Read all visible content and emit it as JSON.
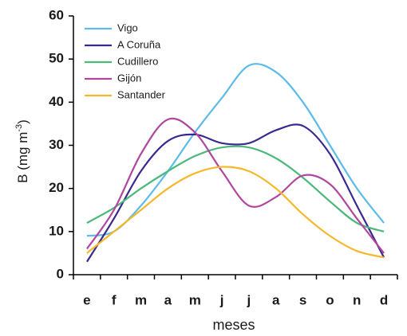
{
  "chart_data": {
    "type": "line",
    "ylabel": "B (mg m",
    "ylabel_sup": "-3",
    "ylabel_end": ")",
    "xlabel": "meses",
    "categories": [
      "e",
      "f",
      "m",
      "a",
      "m",
      "j",
      "j",
      "a",
      "s",
      "o",
      "n",
      "d"
    ],
    "series": [
      {
        "name": "Vigo",
        "color": "#5cbbe8",
        "values": [
          9,
          10,
          16,
          24,
          33,
          41,
          48.5,
          47,
          40,
          30,
          20,
          12
        ]
      },
      {
        "name": "A Coruña",
        "color": "#3a2a90",
        "values": [
          3,
          13,
          24,
          31,
          32.5,
          30.5,
          30.5,
          33.5,
          34.5,
          28,
          16,
          4
        ]
      },
      {
        "name": "Cudillero",
        "color": "#4cb87a",
        "values": [
          12,
          15.5,
          20,
          24,
          27.5,
          29.5,
          29.5,
          27,
          22.5,
          17,
          12,
          10
        ]
      },
      {
        "name": "Gijón",
        "color": "#b0469e",
        "values": [
          6,
          15,
          28,
          36,
          33,
          24,
          16,
          18,
          23,
          21,
          13,
          5
        ]
      },
      {
        "name": "Santander",
        "color": "#f5b82c",
        "values": [
          5,
          10,
          15,
          20,
          23.5,
          25,
          24,
          20,
          14,
          9,
          5.5,
          4
        ]
      }
    ],
    "ylim": [
      0,
      60
    ],
    "yticks": [
      0,
      10,
      20,
      30,
      40,
      50,
      60
    ],
    "legend": "upper left",
    "grid": false
  }
}
